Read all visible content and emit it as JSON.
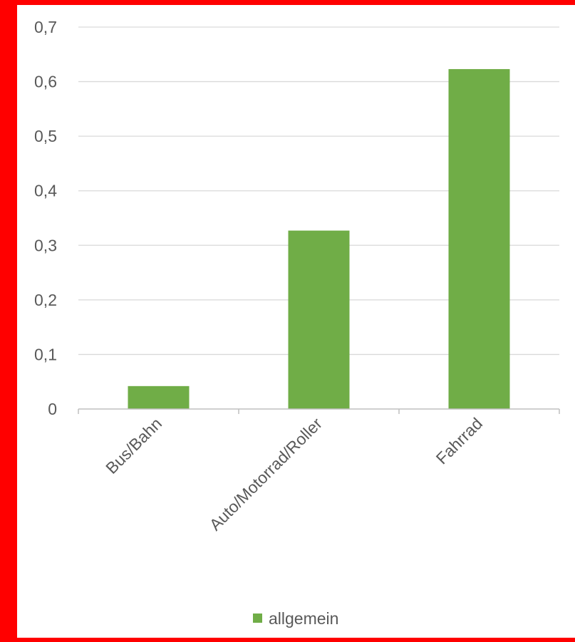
{
  "colors": {
    "frame": "#ff0000",
    "bar": "#70ad47",
    "grid": "#d9d9d9",
    "axis": "#bfbfbf",
    "text": "#595959"
  },
  "chart_data": {
    "type": "bar",
    "categories": [
      "Bus/Bahn",
      "Auto/Motorrad/Roller",
      "Fahrrad"
    ],
    "series": [
      {
        "name": "allgemein",
        "values": [
          0.042,
          0.327,
          0.623
        ]
      }
    ],
    "title": "",
    "xlabel": "",
    "ylabel": "",
    "ylim": [
      0,
      0.7
    ],
    "yticks": [
      "0",
      "0,1",
      "0,2",
      "0,3",
      "0,4",
      "0,5",
      "0,6",
      "0,7"
    ],
    "grid": true,
    "legend": "bottom"
  }
}
